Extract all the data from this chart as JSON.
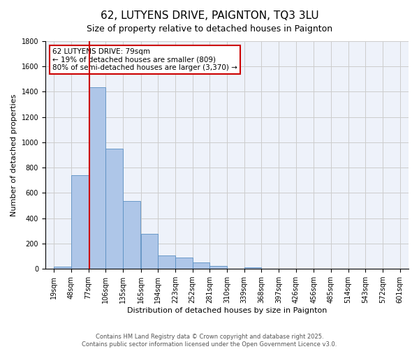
{
  "title": "62, LUTYENS DRIVE, PAIGNTON, TQ3 3LU",
  "subtitle": "Size of property relative to detached houses in Paignton",
  "xlabel": "Distribution of detached houses by size in Paignton",
  "ylabel": "Number of detached properties",
  "bar_values": [
    20,
    740,
    1435,
    950,
    535,
    275,
    105,
    90,
    50,
    25,
    0,
    10,
    0,
    0,
    0,
    0,
    0,
    0,
    0,
    0
  ],
  "bin_labels": [
    "19sqm",
    "48sqm",
    "77sqm",
    "106sqm",
    "135sqm",
    "165sqm",
    "194sqm",
    "223sqm",
    "252sqm",
    "281sqm",
    "310sqm",
    "339sqm",
    "368sqm",
    "397sqm",
    "426sqm",
    "456sqm",
    "485sqm",
    "514sqm",
    "543sqm",
    "572sqm",
    "601sqm"
  ],
  "bin_edges": [
    19,
    48,
    77,
    106,
    135,
    165,
    194,
    223,
    252,
    281,
    310,
    339,
    368,
    397,
    426,
    456,
    485,
    514,
    543,
    572,
    601
  ],
  "bar_color": "#aec6e8",
  "bar_edge_color": "#5a8fc2",
  "red_line_x": 79,
  "annotation_title": "62 LUTYENS DRIVE: 79sqm",
  "annotation_line1": "← 19% of detached houses are smaller (809)",
  "annotation_line2": "80% of semi-detached houses are larger (3,370) →",
  "annotation_box_color": "#ffffff",
  "annotation_border_color": "#cc0000",
  "ylim": [
    0,
    1800
  ],
  "yticks": [
    0,
    200,
    400,
    600,
    800,
    1000,
    1200,
    1400,
    1600,
    1800
  ],
  "grid_color": "#cccccc",
  "background_color": "#eef2fa",
  "footer_line1": "Contains HM Land Registry data © Crown copyright and database right 2025.",
  "footer_line2": "Contains public sector information licensed under the Open Government Licence v3.0.",
  "title_fontsize": 11,
  "subtitle_fontsize": 9,
  "axis_label_fontsize": 8,
  "tick_fontsize": 7,
  "annotation_fontsize": 7.5
}
